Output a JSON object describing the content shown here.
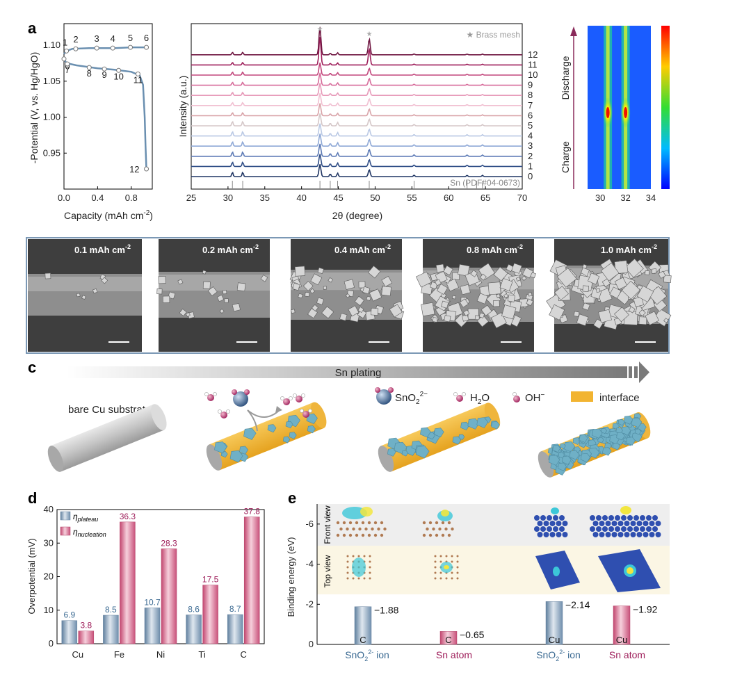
{
  "panels": {
    "a": "a",
    "b": "b",
    "c": "c",
    "d": "d",
    "e": "e"
  },
  "chart_data": [
    {
      "type": "line",
      "panel": "a-left",
      "xlabel": "Capacity (mAh cm",
      "xlabel_sup": "-2",
      "xlabel_end": ")",
      "ylabel": "-Potential (V, vs. Hg/HgO)",
      "xlim": [
        0,
        1.05
      ],
      "ylim": [
        0.9,
        1.13
      ],
      "xticks": [
        "0.0",
        "0.4",
        "0.8"
      ],
      "xtick_values": [
        0,
        0.4,
        0.8
      ],
      "yticks": [
        "0.95",
        "1.00",
        "1.05",
        "1.10"
      ],
      "ytick_values": [
        0.95,
        1.0,
        1.05,
        1.1
      ],
      "color": "#6a8fb0",
      "upper_curve": [
        [
          0.0,
          1.088
        ],
        [
          0.03,
          1.092
        ],
        [
          0.1,
          1.095
        ],
        [
          0.3,
          1.096
        ],
        [
          0.6,
          1.096
        ],
        [
          0.8,
          1.097
        ],
        [
          0.98,
          1.097
        ]
      ],
      "lower_curve": [
        [
          0.0,
          1.081
        ],
        [
          0.03,
          1.075
        ],
        [
          0.15,
          1.072
        ],
        [
          0.4,
          1.068
        ],
        [
          0.6,
          1.066
        ],
        [
          0.8,
          1.063
        ],
        [
          0.9,
          1.058
        ],
        [
          0.94,
          1.045
        ],
        [
          0.96,
          1.0
        ],
        [
          0.97,
          0.96
        ],
        [
          0.98,
          0.928
        ]
      ],
      "points": [
        {
          "label": "1",
          "x": 0.03,
          "y": 1.092
        },
        {
          "label": "2",
          "x": 0.14,
          "y": 1.095
        },
        {
          "label": "3",
          "x": 0.39,
          "y": 1.096
        },
        {
          "label": "4",
          "x": 0.58,
          "y": 1.096
        },
        {
          "label": "5",
          "x": 0.79,
          "y": 1.097
        },
        {
          "label": "6",
          "x": 0.98,
          "y": 1.097
        },
        {
          "label": "0",
          "x": 0.0,
          "y": 1.081
        },
        {
          "label": "7",
          "x": 0.04,
          "y": 1.074
        },
        {
          "label": "8",
          "x": 0.3,
          "y": 1.069
        },
        {
          "label": "9",
          "x": 0.48,
          "y": 1.067
        },
        {
          "label": "10",
          "x": 0.65,
          "y": 1.065
        },
        {
          "label": "11",
          "x": 0.88,
          "y": 1.06
        },
        {
          "label": "12",
          "x": 0.98,
          "y": 0.928
        }
      ]
    },
    {
      "type": "line",
      "panel": "a-xrd",
      "xlabel": "2θ (degree)",
      "ylabel": "Intensity (a.u.)",
      "xlim": [
        25,
        70
      ],
      "xticks": [
        "25",
        "30",
        "35",
        "40",
        "45",
        "50",
        "55",
        "60",
        "65",
        "70"
      ],
      "xtick_values": [
        25,
        30,
        35,
        40,
        45,
        50,
        55,
        60,
        65,
        70
      ],
      "legend_star": "Brass mesh",
      "reference": "Sn (PDF#04-0673)",
      "reference_lines": [
        30.6,
        32.0,
        43.9,
        44.9,
        55.3,
        62.5,
        63.8,
        64.6
      ],
      "series": [
        {
          "name": "0",
          "color": "#1f3563"
        },
        {
          "name": "1",
          "color": "#2f4d86"
        },
        {
          "name": "2",
          "color": "#5a78b4"
        },
        {
          "name": "3",
          "color": "#8ea8d6"
        },
        {
          "name": "4",
          "color": "#b9c8e4"
        },
        {
          "name": "5",
          "color": "#d5c7c8"
        },
        {
          "name": "6",
          "color": "#d9a3a8"
        },
        {
          "name": "7",
          "color": "#f1bfd1"
        },
        {
          "name": "8",
          "color": "#e79ab9"
        },
        {
          "name": "9",
          "color": "#d76b9a"
        },
        {
          "name": "10",
          "color": "#c2467c"
        },
        {
          "name": "11",
          "color": "#9e1e5a"
        },
        {
          "name": "12",
          "color": "#6e1540"
        }
      ]
    },
    {
      "type": "heatmap",
      "panel": "a-contour",
      "xticks": [
        "30",
        "32",
        "34"
      ],
      "xtick_values": [
        30,
        32,
        34
      ],
      "xlim": [
        29,
        34
      ],
      "label_top": "Discharge",
      "label_bottom": "Charge",
      "label_top_color": "#9e1e5a",
      "label_bottom_color": "#3b5a96"
    },
    {
      "type": "bar",
      "panel": "d",
      "ylabel": "Overpotential (mV)",
      "ylim": [
        0,
        40
      ],
      "yticks": [
        "0",
        "10",
        "20",
        "30",
        "40"
      ],
      "ytick_values": [
        0,
        10,
        20,
        30,
        40
      ],
      "categories": [
        "Cu",
        "Fe",
        "Ni",
        "Ti",
        "C"
      ],
      "series": [
        {
          "name": "η",
          "sub": "plateau",
          "values": [
            6.9,
            8.5,
            10.7,
            8.6,
            8.7
          ],
          "color": "#8ea7bf",
          "label_color": "#3b6a92"
        },
        {
          "name": "η",
          "sub": "nucleation",
          "values": [
            3.8,
            36.3,
            28.3,
            17.5,
            37.8
          ],
          "color": "#d8708f",
          "label_color": "#9e1e5a"
        }
      ]
    },
    {
      "type": "bar",
      "panel": "e",
      "ylabel": "Binding energy (eV)",
      "ylim": [
        0,
        -7
      ],
      "yticks": [
        "0",
        "-2",
        "-4",
        "-6"
      ],
      "ytick_values": [
        0,
        -2,
        -4,
        -6
      ],
      "row_labels": [
        "Front view",
        "Top view"
      ],
      "bars": [
        {
          "value": -1.88,
          "label": "−1.88",
          "substrate": "C",
          "color": "#8ea7bf"
        },
        {
          "value": -0.65,
          "label": "−0.65",
          "substrate": "C",
          "color": "#d8708f"
        },
        {
          "value": -2.14,
          "label": "−2.14",
          "substrate": "Cu",
          "color": "#8ea7bf"
        },
        {
          "value": -1.92,
          "label": "−1.92",
          "substrate": "Cu",
          "color": "#d8708f"
        }
      ],
      "categories": [
        {
          "text": "SnO",
          "sub": "2",
          "sup": "2-",
          "suffix": " ion",
          "color": "#3b6a92"
        },
        {
          "text": "Sn atom",
          "color": "#9e1e5a"
        },
        {
          "text": "SnO",
          "sub": "2",
          "sup": "2-",
          "suffix": " ion",
          "color": "#3b6a92"
        },
        {
          "text": "Sn atom",
          "color": "#9e1e5a"
        }
      ]
    }
  ],
  "sem": {
    "labels": [
      "0.1 mAh  cm",
      "0.2 mAh  cm",
      "0.4 mAh  cm",
      "0.8 mAh  cm",
      "1.0 mAh  cm"
    ],
    "sup": "-2"
  },
  "schematic": {
    "arrow_label": "Sn plating",
    "bare": "bare Cu substrate",
    "legend_sno": "SnO",
    "legend_sno_sub": "2",
    "legend_sno_sup": "2−",
    "legend_h2o": "H",
    "legend_h2o_sub": "2",
    "legend_h2o_end": "O",
    "legend_oh": "OH",
    "legend_oh_sup": "−",
    "legend_interface": "interface",
    "colors": {
      "interface": "#f2b431",
      "deposit": "#6fb0c6",
      "rod": "#c8c8c8"
    }
  }
}
